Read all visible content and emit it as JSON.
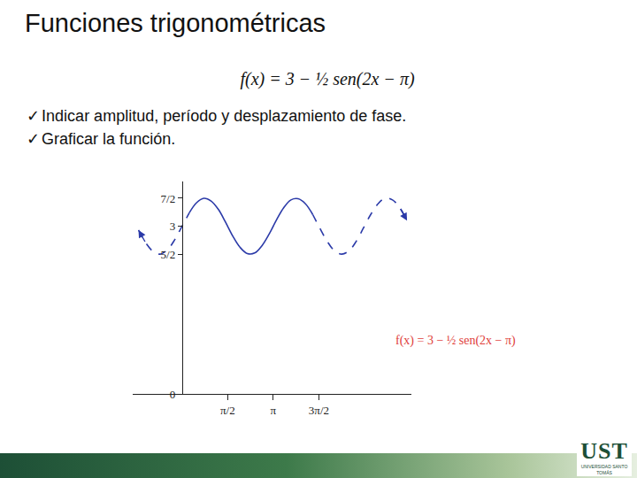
{
  "slide": {
    "title": "Funciones trigonométricas",
    "formula": "f(x) = 3 − ½ sen(2x − π)",
    "bullets": [
      "Indicar amplitud, período y desplazamiento de fase.",
      "Graficar la función."
    ],
    "logo": "UST",
    "logo_subtitle": "UNIVERSIDAD SANTO TOMÁS"
  },
  "chart_data": {
    "type": "line",
    "annotations": [
      {
        "text": "f(x) = 3 − ½ sen(2x − π)"
      }
    ],
    "xlim": [
      -1.7,
      7.9
    ],
    "xticks": [
      {
        "value": 1.5708,
        "label": "π/2"
      },
      {
        "value": 3.1416,
        "label": "π"
      },
      {
        "value": 4.7124,
        "label": "3π/2"
      }
    ],
    "ylim": [
      0,
      3.8
    ],
    "yticks": [
      0,
      {
        "value": 2.5,
        "label": "5/2"
      },
      3,
      {
        "value": 3.5,
        "label": "7/2"
      }
    ],
    "grid": false,
    "series": [
      {
        "color": "#2b3aa8",
        "line_style": "dash",
        "marker": "arrow",
        "x": [
          -1.5,
          -1.25,
          -1.0,
          -0.75,
          -0.5,
          -0.25,
          0,
          0.25
        ],
        "values": [
          2.93,
          2.7,
          2.55,
          2.5,
          2.58,
          2.76,
          3.0,
          3.24
        ]
      },
      {
        "color": "#2b3aa8",
        "line_style": "solid",
        "x": [
          0.25,
          0.5,
          0.75,
          1.0,
          1.25,
          1.5,
          1.75,
          2.0,
          2.25,
          2.5,
          2.75,
          3.0,
          3.25,
          3.5,
          3.75,
          4.0,
          4.25,
          4.5
        ],
        "values": [
          3.24,
          3.42,
          3.5,
          3.45,
          3.3,
          3.07,
          2.82,
          2.62,
          2.51,
          2.52,
          2.65,
          2.86,
          3.11,
          3.33,
          3.47,
          3.49,
          3.4,
          3.21
        ]
      },
      {
        "color": "#2b3aa8",
        "line_style": "dash",
        "marker": "arrow",
        "x": [
          4.5,
          4.75,
          5.0,
          5.25,
          5.5,
          5.75,
          6.0,
          6.25,
          6.5,
          6.75,
          7.0,
          7.25,
          7.5,
          7.75
        ],
        "values": [
          3.21,
          2.96,
          2.73,
          2.56,
          2.5,
          2.56,
          2.73,
          2.97,
          3.21,
          3.4,
          3.5,
          3.47,
          3.33,
          3.1
        ]
      }
    ]
  }
}
